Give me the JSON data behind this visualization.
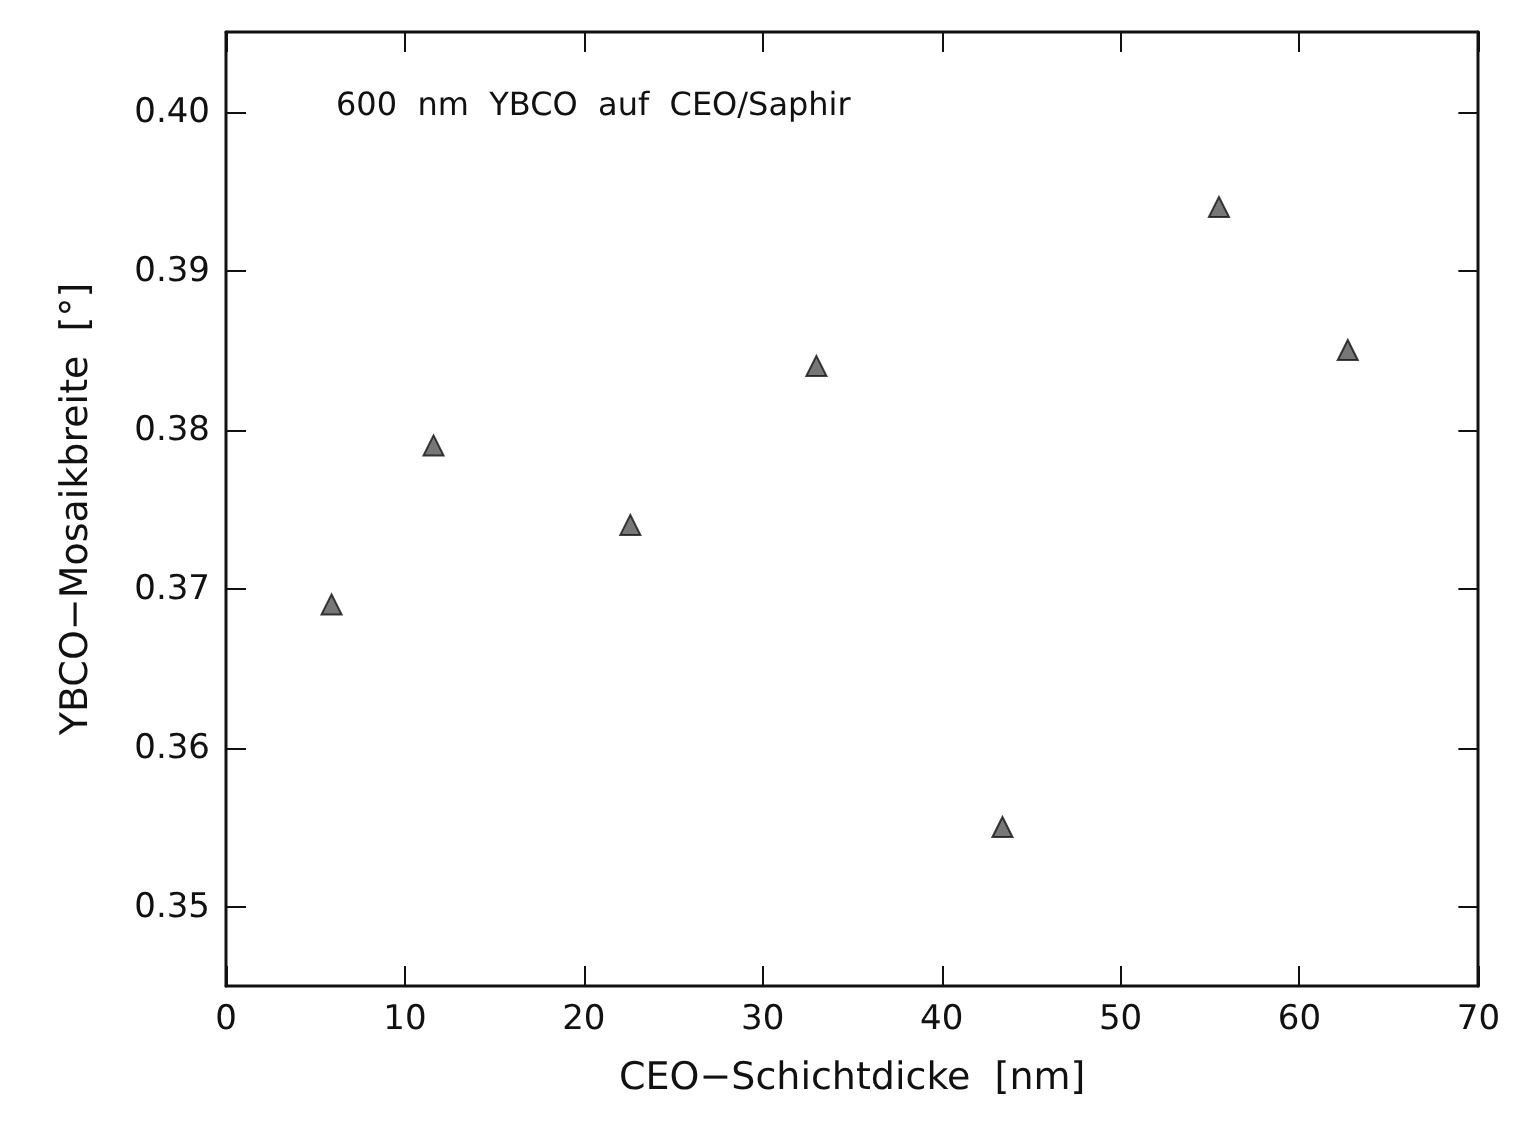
{
  "chart_data": {
    "type": "scatter",
    "xlabel": "CEO−Schichtdicke  [nm]",
    "ylabel": "YBCO−Mosaikbreite  [°]",
    "annotations": [
      "600  nm  YBCO  auf  CEO/Saphir"
    ],
    "x": [
      5.9,
      11.6,
      22.6,
      33,
      43.4,
      55.5,
      62.7
    ],
    "values": [
      0.369,
      0.379,
      0.374,
      0.384,
      0.355,
      0.394,
      0.385
    ],
    "color": "#555555",
    "marker": "triangle",
    "grid": false,
    "xlim": [
      0,
      70
    ],
    "xticks": [
      0,
      10,
      20,
      30,
      40,
      50,
      60,
      70
    ],
    "ylim": [
      0.345,
      0.405
    ],
    "yticks": [
      {
        "value": 0.35,
        "label": "0.35"
      },
      {
        "value": 0.36,
        "label": "0.36"
      },
      {
        "value": 0.37,
        "label": "0.37"
      },
      {
        "value": 0.38,
        "label": "0.38"
      },
      {
        "value": 0.39,
        "label": "0.39"
      },
      {
        "value": 0.4,
        "label": "0.40"
      }
    ]
  }
}
